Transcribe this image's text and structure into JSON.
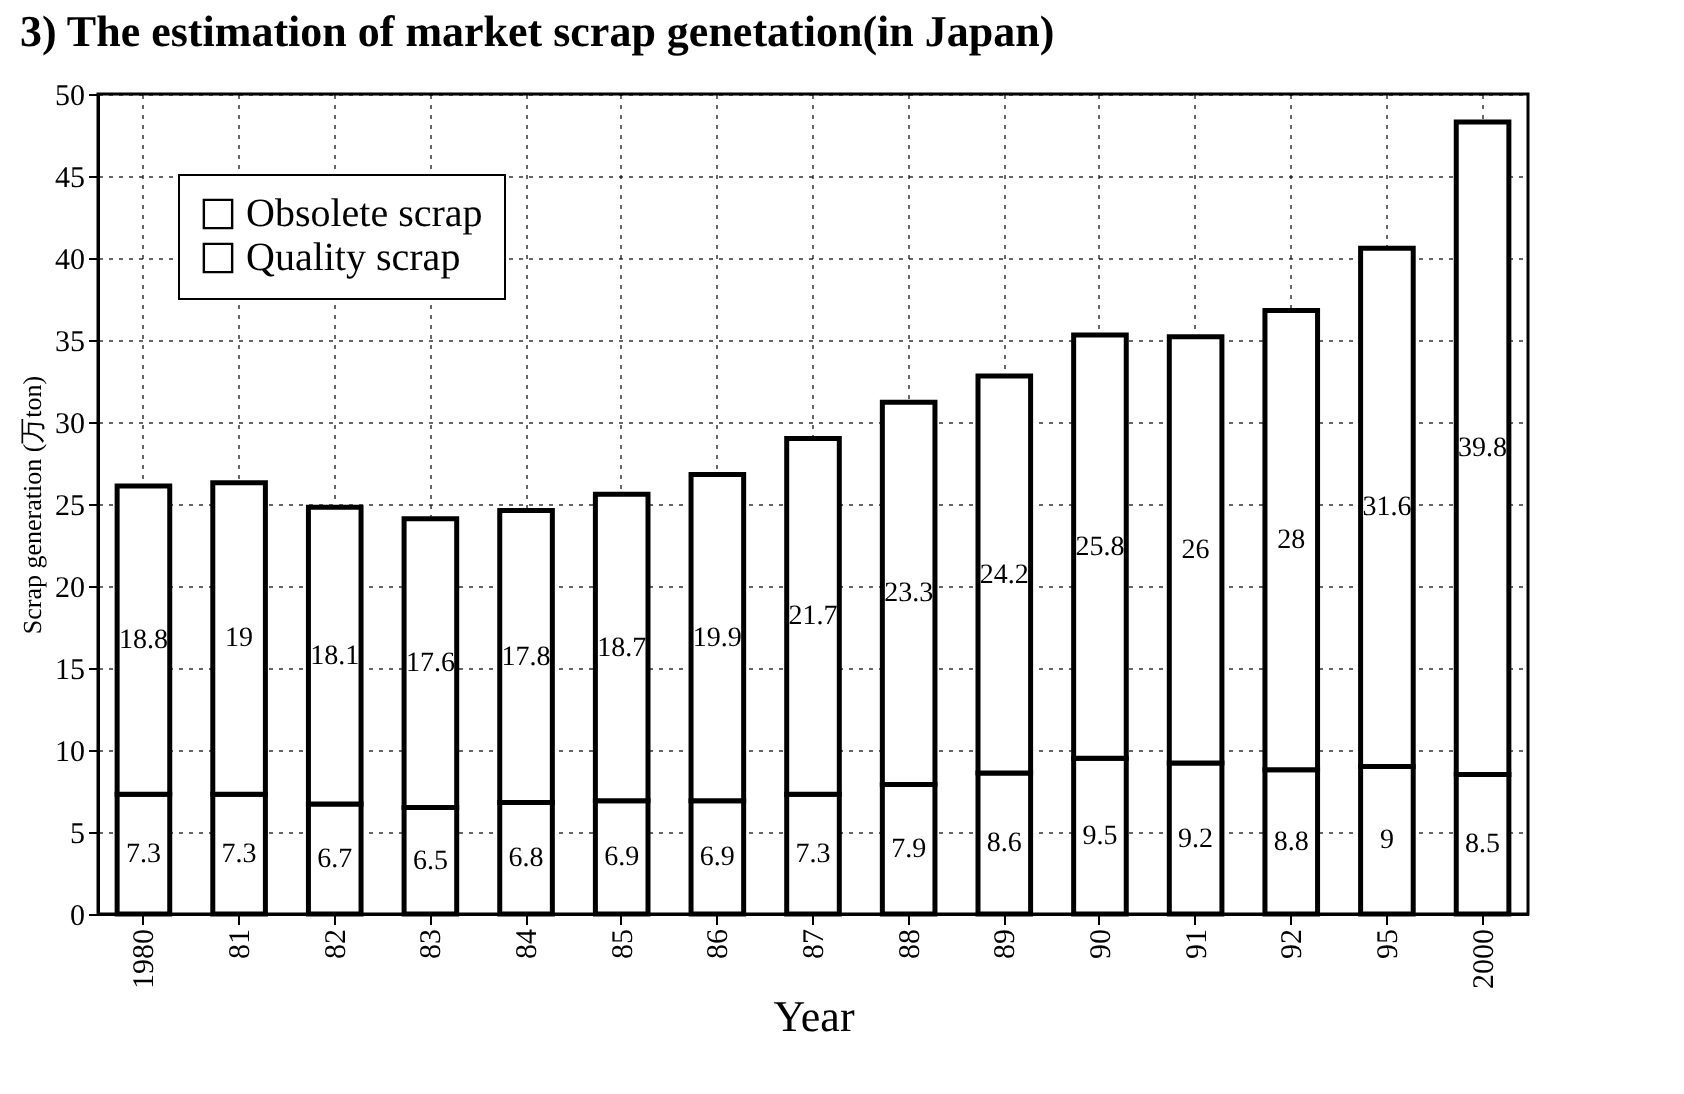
{
  "chart_data": {
    "type": "bar",
    "title": "3) The estimation of market scrap genetation(in Japan)",
    "xlabel": "Year",
    "ylabel": "Scrap generation (万ton)",
    "categories": [
      "1980",
      "81",
      "82",
      "83",
      "84",
      "85",
      "86",
      "87",
      "88",
      "89",
      "90",
      "91",
      "92",
      "95",
      "2000"
    ],
    "stacked": true,
    "series": [
      {
        "name": "Quality scrap",
        "color": "#ffffff",
        "values": [
          7.3,
          7.3,
          6.7,
          6.5,
          6.8,
          6.9,
          6.9,
          7.3,
          7.9,
          8.6,
          9.5,
          9.2,
          8.8,
          9.0,
          8.5
        ]
      },
      {
        "name": "Obsolete scrap",
        "color": "#ffffff",
        "values": [
          18.8,
          19.0,
          18.1,
          17.6,
          17.8,
          18.7,
          19.9,
          21.7,
          23.3,
          24.2,
          25.8,
          26.0,
          28.0,
          31.6,
          39.8
        ]
      }
    ],
    "data_labels": true,
    "ylim": [
      0,
      50
    ],
    "yticks": [
      0,
      5,
      10,
      15,
      20,
      25,
      30,
      35,
      40,
      45,
      50
    ],
    "grid": true,
    "legend": "top left"
  }
}
